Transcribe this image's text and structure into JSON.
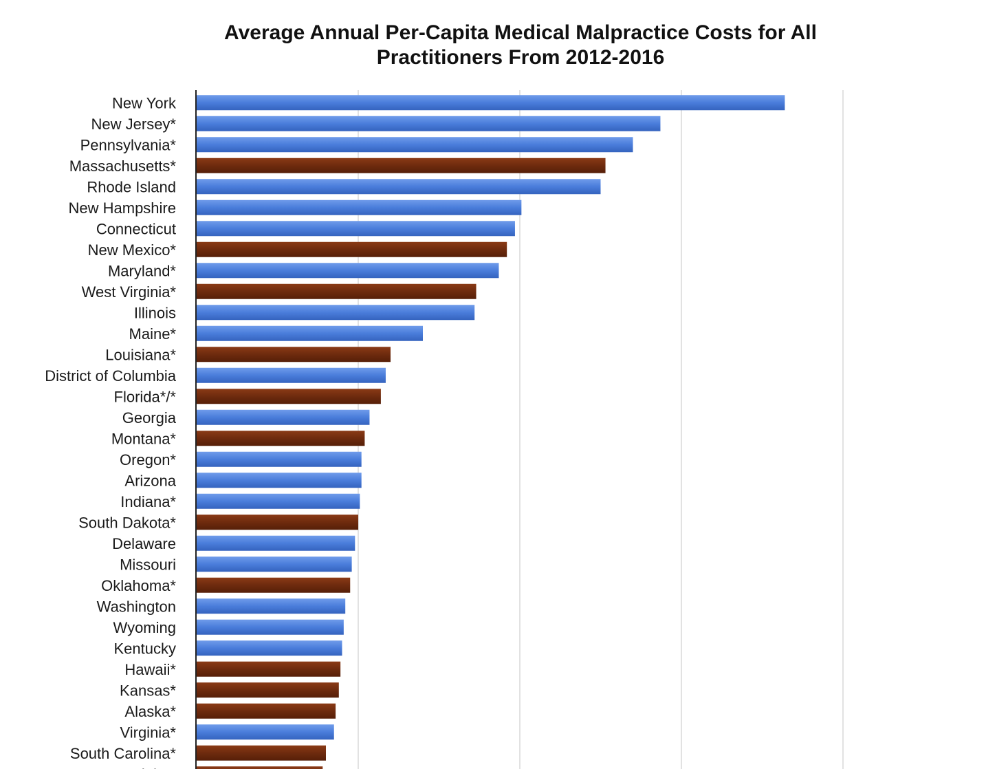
{
  "chart_data": {
    "type": "bar",
    "orientation": "horizontal",
    "title_lines": [
      "Average Annual Per-Capita Medical Malpractice Costs for All",
      "Practitioners From 2012-2016"
    ],
    "xlim": [
      0,
      5
    ],
    "grid": true,
    "colors": {
      "blue": "#4a7ddb",
      "brown": "#6e2b0e"
    },
    "categories": [
      "New York",
      "New Jersey*",
      "Pennsylvania*",
      "Massachusetts*",
      "Rhode Island",
      "New Hampshire",
      "Connecticut",
      "New Mexico*",
      "Maryland*",
      "West Virginia*",
      "Illinois",
      "Maine*",
      "Louisiana*",
      "District of Columbia",
      "Florida*/*",
      "Georgia",
      "Montana*",
      "Oregon*",
      "Arizona",
      "Indiana*",
      "South Dakota*",
      "Delaware",
      "Missouri",
      "Oklahoma*",
      "Washington",
      "Wyoming",
      "Kentucky",
      "Hawaii*",
      "Kansas*",
      "Alaska*",
      "Virginia*",
      "South Carolina*",
      "Idaho*"
    ],
    "values": [
      3.64,
      2.87,
      2.7,
      2.53,
      2.5,
      2.01,
      1.97,
      1.92,
      1.87,
      1.73,
      1.72,
      1.4,
      1.2,
      1.17,
      1.14,
      1.07,
      1.04,
      1.02,
      1.02,
      1.01,
      1.0,
      0.98,
      0.96,
      0.95,
      0.92,
      0.91,
      0.9,
      0.89,
      0.88,
      0.86,
      0.85,
      0.8,
      0.78
    ],
    "bar_color": [
      "blue",
      "blue",
      "blue",
      "brown",
      "blue",
      "blue",
      "blue",
      "brown",
      "blue",
      "brown",
      "blue",
      "blue",
      "brown",
      "blue",
      "brown",
      "blue",
      "brown",
      "blue",
      "blue",
      "blue",
      "brown",
      "blue",
      "blue",
      "brown",
      "blue",
      "blue",
      "blue",
      "brown",
      "brown",
      "brown",
      "blue",
      "brown",
      "brown"
    ]
  }
}
